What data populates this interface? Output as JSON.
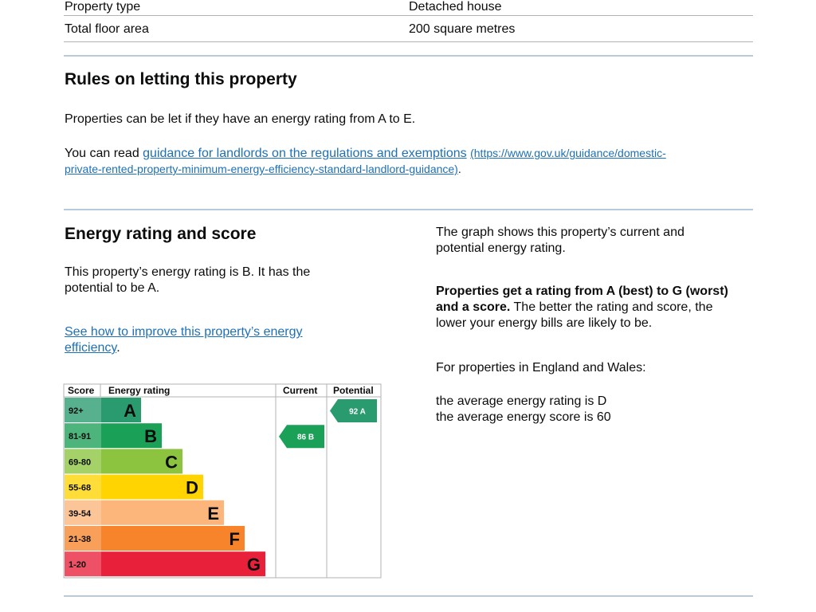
{
  "summary": {
    "rows": [
      {
        "label": "Property type",
        "value": "Detached house"
      },
      {
        "label": "Total floor area",
        "value": "200 square metres"
      }
    ]
  },
  "letting": {
    "heading": "Rules on letting this property",
    "intro": "Properties can be let if they have an energy rating from A to E.",
    "read_prefix": "You can read ",
    "link_text": "guidance for landlords on the regulations and exemptions",
    "url_line1": "(https://www.gov.uk/guidance/domestic-",
    "url_line2": "private-rented-property-minimum-energy-efficiency-standard-landlord-guidance)",
    "url_end": "."
  },
  "energy": {
    "heading": "Energy rating and score",
    "rating_line1": "This property’s energy rating is B. It has the",
    "rating_line2": "potential to be A.",
    "improve_link_line1": "See how to improve this property’s energy",
    "improve_link_line2": "efficiency",
    "improve_link_end": ".",
    "graph_desc_line1": "The graph shows this property’s current and",
    "graph_desc_line2": "potential energy rating.",
    "scale_bold_line1": "Properties get a rating from A (best) to G (worst)",
    "scale_bold_line2": "and a score.",
    "scale_rest_line2": " The better the rating and score, the",
    "scale_rest_line3": "lower your energy bills are likely to be.",
    "regional_intro": "For properties in England and Wales:",
    "avg_rating": "the average energy rating is D",
    "avg_score": "the average energy score is 60"
  },
  "chart_data": {
    "type": "table",
    "headers": {
      "score": "Score",
      "rating": "Energy rating",
      "current": "Current",
      "potential": "Potential"
    },
    "bands": [
      {
        "letter": "A",
        "range": "92+",
        "color": "#2a9b6f"
      },
      {
        "letter": "B",
        "range": "81-91",
        "color": "#1ba058"
      },
      {
        "letter": "C",
        "range": "69-80",
        "color": "#8cc43f"
      },
      {
        "letter": "D",
        "range": "55-68",
        "color": "#ffd400"
      },
      {
        "letter": "E",
        "range": "39-54",
        "color": "#fcb57b"
      },
      {
        "letter": "F",
        "range": "21-38",
        "color": "#f7842b"
      },
      {
        "letter": "G",
        "range": "1-20",
        "color": "#e9203a"
      }
    ],
    "current": {
      "score": 86,
      "letter": "B",
      "label": "86 B",
      "color": "#1ba058"
    },
    "potential": {
      "score": 92,
      "letter": "A",
      "label": "92 A",
      "color": "#2a9b6f"
    }
  }
}
